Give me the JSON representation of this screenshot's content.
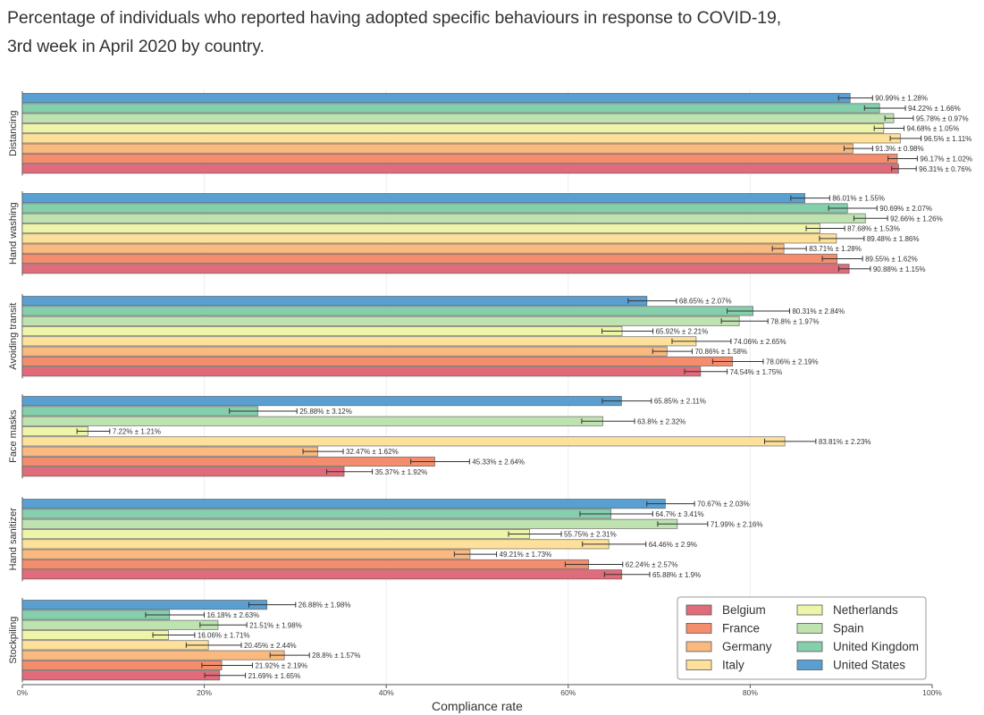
{
  "page": {
    "title_line1": "Percentage of individuals who reported having adopted specific behaviours in response to COVID-19,",
    "title_line2": "3rd week in April 2020 by country."
  },
  "chart_data": {
    "type": "bar",
    "orientation": "horizontal",
    "title": "Percentage of individuals who reported having adopted specific behaviours in response to COVID-19, 3rd week in April 2020 by country.",
    "xlabel": "Compliance rate",
    "ylabel": "",
    "xlim": [
      0,
      100
    ],
    "x_ticks": [
      0,
      20,
      40,
      60,
      80,
      100
    ],
    "x_tick_labels": [
      "0%",
      "20%",
      "40%",
      "60%",
      "80%",
      "100%"
    ],
    "grid": "vertical",
    "legend_position": "bottom-right",
    "legend_columns": 2,
    "series_order_legend": [
      "Belgium",
      "France",
      "Germany",
      "Italy",
      "Netherlands",
      "Spain",
      "United Kingdom",
      "United States"
    ],
    "bar_order_top_to_bottom": [
      "United States",
      "United Kingdom",
      "Spain",
      "Netherlands",
      "Italy",
      "Germany",
      "France",
      "Belgium"
    ],
    "colors": {
      "Belgium": "#e06b7a",
      "France": "#f48d6e",
      "Germany": "#f9b97f",
      "Italy": "#fde09a",
      "Netherlands": "#eef4a8",
      "Spain": "#bfe2b1",
      "United Kingdom": "#86cfad",
      "United States": "#5a9fd1"
    },
    "categories": [
      "Distancing",
      "Hand washing",
      "Avoiding transit",
      "Face masks",
      "Hand sanitizer",
      "Stockpiling"
    ],
    "panels": [
      {
        "category": "Distancing",
        "values": {
          "United States": [
            90.99,
            1.28
          ],
          "United Kingdom": [
            94.22,
            1.66
          ],
          "Spain": [
            95.78,
            0.97
          ],
          "Netherlands": [
            94.68,
            1.05
          ],
          "Italy": [
            96.5,
            1.11
          ],
          "Germany": [
            91.3,
            0.98
          ],
          "France": [
            96.17,
            1.02
          ],
          "Belgium": [
            96.31,
            0.76
          ]
        },
        "labels": {
          "United States": "90.99% ± 1.28%",
          "United Kingdom": "94.22% ± 1.66%",
          "Spain": "95.78% ± 0.97%",
          "Netherlands": "94.68% ± 1.05%",
          "Italy": "96.5% ± 1.11%",
          "Germany": "91.3% ± 0.98%",
          "France": "96.17% ± 1.02%",
          "Belgium": "96.31% ± 0.76%"
        }
      },
      {
        "category": "Hand washing",
        "values": {
          "United States": [
            86.01,
            1.55
          ],
          "United Kingdom": [
            90.69,
            2.07
          ],
          "Spain": [
            92.66,
            1.26
          ],
          "Netherlands": [
            87.68,
            1.53
          ],
          "Italy": [
            89.48,
            1.86
          ],
          "Germany": [
            83.71,
            1.28
          ],
          "France": [
            89.55,
            1.62
          ],
          "Belgium": [
            90.88,
            1.15
          ]
        },
        "labels": {
          "United States": "86.01% ± 1.55%",
          "United Kingdom": "90.69% ± 2.07%",
          "Spain": "92.66% ± 1.26%",
          "Netherlands": "87.68% ± 1.53%",
          "Italy": "89.48% ± 1.86%",
          "Germany": "83.71% ± 1.28%",
          "France": "89.55% ± 1.62%",
          "Belgium": "90.88% ± 1.15%"
        }
      },
      {
        "category": "Avoiding transit",
        "values": {
          "United States": [
            68.65,
            2.07
          ],
          "United Kingdom": [
            80.31,
            2.84
          ],
          "Spain": [
            78.8,
            1.97
          ],
          "Netherlands": [
            65.92,
            2.21
          ],
          "Italy": [
            74.06,
            2.65
          ],
          "Germany": [
            70.86,
            1.58
          ],
          "France": [
            78.06,
            2.19
          ],
          "Belgium": [
            74.54,
            1.75
          ]
        },
        "labels": {
          "United States": "68.65% ± 2.07%",
          "United Kingdom": "80.31% ± 2.84%",
          "Spain": "78.8% ± 1.97%",
          "Netherlands": "65.92% ± 2.21%",
          "Italy": "74.06% ± 2.65%",
          "Germany": "70.86% ± 1.58%",
          "France": "78.06% ± 2.19%",
          "Belgium": "74.54% ± 1.75%"
        }
      },
      {
        "category": "Face masks",
        "values": {
          "United States": [
            65.85,
            2.11
          ],
          "United Kingdom": [
            25.88,
            3.12
          ],
          "Spain": [
            63.8,
            2.32
          ],
          "Netherlands": [
            7.22,
            1.21
          ],
          "Italy": [
            83.81,
            2.23
          ],
          "Germany": [
            32.47,
            1.62
          ],
          "France": [
            45.33,
            2.64
          ],
          "Belgium": [
            35.37,
            1.92
          ]
        },
        "labels": {
          "United States": "65.85% ± 2.11%",
          "United Kingdom": "25.88% ± 3.12%",
          "Spain": "63.8% ± 2.32%",
          "Netherlands": "7.22% ± 1.21%",
          "Italy": "83.81% ± 2.23%",
          "Germany": "32.47% ± 1.62%",
          "France": "45.33% ± 2.64%",
          "Belgium": "35.37% ± 1.92%"
        }
      },
      {
        "category": "Hand sanitizer",
        "values": {
          "United States": [
            70.67,
            2.03
          ],
          "United Kingdom": [
            64.7,
            3.41
          ],
          "Spain": [
            71.99,
            2.16
          ],
          "Netherlands": [
            55.75,
            2.31
          ],
          "Italy": [
            64.46,
            2.9
          ],
          "Germany": [
            49.21,
            1.73
          ],
          "France": [
            62.24,
            2.57
          ],
          "Belgium": [
            65.88,
            1.9
          ]
        },
        "labels": {
          "United States": "70.67% ± 2.03%",
          "United Kingdom": "64.7% ± 3.41%",
          "Spain": "71.99% ± 2.16%",
          "Netherlands": "55.75% ± 2.31%",
          "Italy": "64.46% ± 2.9%",
          "Germany": "49.21% ± 1.73%",
          "France": "62.24% ± 2.57%",
          "Belgium": "65.88% ± 1.9%"
        }
      },
      {
        "category": "Stockpiling",
        "values": {
          "United States": [
            26.88,
            1.98
          ],
          "United Kingdom": [
            16.18,
            2.63
          ],
          "Spain": [
            21.51,
            1.98
          ],
          "Netherlands": [
            16.06,
            1.71
          ],
          "Italy": [
            20.45,
            2.44
          ],
          "Germany": [
            28.8,
            1.57
          ],
          "France": [
            21.92,
            2.19
          ],
          "Belgium": [
            21.69,
            1.65
          ]
        },
        "labels": {
          "United States": "26.88% ± 1.98%",
          "United Kingdom": "16.18% ± 2.63%",
          "Spain": "21.51% ± 1.98%",
          "Netherlands": "16.06% ± 1.71%",
          "Italy": "20.45% ± 2.44%",
          "Germany": "28.8% ± 1.57%",
          "France": "21.92% ± 2.19%",
          "Belgium": "21.69% ± 1.65%"
        }
      }
    ]
  }
}
